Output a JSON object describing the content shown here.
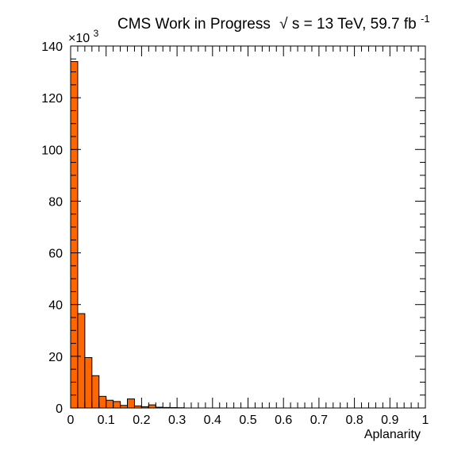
{
  "title": {
    "prefix": "CMS Work in Progress",
    "sqrt_symbol": "√",
    "energy": "s = 13 TeV, 59.7 fb",
    "lumi_exponent": "-1"
  },
  "axes": {
    "xlabel": "Aplanarity",
    "y_multiplier_base": "×10",
    "y_multiplier_exponent": "3"
  },
  "colors": {
    "bar_fill": "#ff6600",
    "bar_stroke": "#000000",
    "frame": "#000000"
  },
  "chart_data": {
    "type": "bar",
    "title": "CMS Work in Progress √s = 13 TeV, 59.7 fb⁻¹",
    "xlabel": "Aplanarity",
    "ylabel": "",
    "xlim": [
      0,
      1
    ],
    "ylim": [
      0,
      140000
    ],
    "y_scale_label": "×10³",
    "bin_width": 0.02,
    "x_ticks": [
      0,
      0.1,
      0.2,
      0.3,
      0.4,
      0.5,
      0.6,
      0.7,
      0.8,
      0.9,
      1
    ],
    "x_tick_labels": [
      "0",
      "0.1",
      "0.2",
      "0.3",
      "0.4",
      "0.5",
      "0.6",
      "0.7",
      "0.8",
      "0.9",
      "1"
    ],
    "y_ticks": [
      0,
      20000,
      40000,
      60000,
      80000,
      100000,
      120000,
      140000
    ],
    "y_tick_labels": [
      "0",
      "20",
      "40",
      "60",
      "80",
      "100",
      "120",
      "140"
    ],
    "bin_edges_low": [
      0,
      0.02,
      0.04,
      0.06,
      0.08,
      0.1,
      0.12,
      0.14,
      0.16,
      0.18,
      0.2,
      0.22,
      0.24,
      0.26,
      0.28,
      0.3
    ],
    "values": [
      134000,
      36500,
      19500,
      12500,
      4500,
      3000,
      2500,
      1000,
      3500,
      800,
      500,
      1200,
      300,
      200,
      150,
      100
    ],
    "grid": false,
    "legend": "none"
  }
}
